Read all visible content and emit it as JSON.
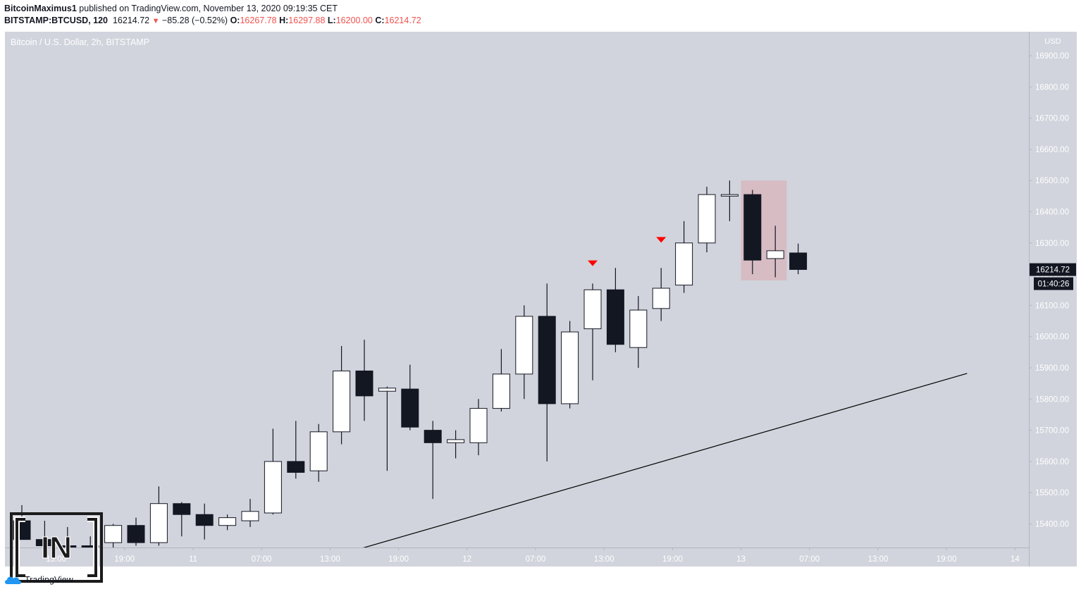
{
  "header": {
    "author": "BitcoinMaximus1",
    "published": " published on TradingView.com, November 13, 2020 09:19:35 CET",
    "symbol": "BITSTAMP:BTCUSD, 120",
    "last": "16214.72",
    "change": "−85.28 (−0.52%)",
    "o_label": "O:",
    "o_value": "16267.78",
    "h_label": "H:",
    "h_value": "16297.88",
    "l_label": "L:",
    "l_value": "16200.00",
    "c_label": "C:",
    "c_value": "16214.72"
  },
  "pane_title": "Bitcoin / U.S. Dollar, 2h, BITSTAMP",
  "footer": {
    "brand": "TradingView",
    "watermark_text": "IN"
  },
  "colors": {
    "background": "#d1d4dc",
    "bull": "#ffffff",
    "bear": "#131722",
    "marker": "#ff0000",
    "highlight": "#d8b4bc"
  },
  "chart_data": {
    "type": "candlestick",
    "title": "Bitcoin / U.S. Dollar, 2h, BITSTAMP",
    "currency": "USD",
    "ylim": [
      15300,
      16950
    ],
    "y_ticks": [
      "15400.00",
      "15500.00",
      "15600.00",
      "15700.00",
      "15800.00",
      "15900.00",
      "16000.00",
      "16100.00",
      "16200.00",
      "16300.00",
      "16400.00",
      "16500.00",
      "16600.00",
      "16700.00",
      "16800.00",
      "16900.00"
    ],
    "x_ticks": [
      "13:00",
      "19:00",
      "11",
      "07:00",
      "13:00",
      "19:00",
      "12",
      "07:00",
      "13:00",
      "19:00",
      "13",
      "07:00",
      "13:00",
      "19:00",
      "14"
    ],
    "x_tick_slots": [
      1.5,
      4.5,
      7.5,
      10.5,
      13.5,
      16.5,
      19.5,
      22.5,
      25.5,
      28.5,
      31.5,
      34.5,
      37.5,
      40.5,
      43.5
    ],
    "last_price_label": "16214.72",
    "countdown_label": "01:40:26",
    "last_price": 16214.72,
    "candles": [
      {
        "o": 15410,
        "h": 15460,
        "l": 15350,
        "c": 15350
      },
      {
        "o": 15350,
        "h": 15410,
        "l": 15330,
        "c": 15330
      },
      {
        "o": 15330,
        "h": 15390,
        "l": 15320,
        "c": 15320
      },
      {
        "o": 15330,
        "h": 15360,
        "l": 15320,
        "c": 15320
      },
      {
        "o": 15340,
        "h": 15400,
        "l": 15320,
        "c": 15395
      },
      {
        "o": 15395,
        "h": 15420,
        "l": 15330,
        "c": 15340
      },
      {
        "o": 15340,
        "h": 15520,
        "l": 15330,
        "c": 15465
      },
      {
        "o": 15465,
        "h": 15470,
        "l": 15360,
        "c": 15430
      },
      {
        "o": 15430,
        "h": 15465,
        "l": 15350,
        "c": 15395
      },
      {
        "o": 15395,
        "h": 15430,
        "l": 15380,
        "c": 15420
      },
      {
        "o": 15410,
        "h": 15480,
        "l": 15390,
        "c": 15440
      },
      {
        "o": 15435,
        "h": 15705,
        "l": 15430,
        "c": 15600
      },
      {
        "o": 15600,
        "h": 15730,
        "l": 15545,
        "c": 15565
      },
      {
        "o": 15570,
        "h": 15720,
        "l": 15535,
        "c": 15695
      },
      {
        "o": 15695,
        "h": 15970,
        "l": 15655,
        "c": 15890
      },
      {
        "o": 15890,
        "h": 15990,
        "l": 15730,
        "c": 15810
      },
      {
        "o": 15825,
        "h": 15840,
        "l": 15570,
        "c": 15835
      },
      {
        "o": 15832,
        "h": 15910,
        "l": 15700,
        "c": 15710
      },
      {
        "o": 15700,
        "h": 15730,
        "l": 15480,
        "c": 15660
      },
      {
        "o": 15660,
        "h": 15700,
        "l": 15610,
        "c": 15670
      },
      {
        "o": 15660,
        "h": 15800,
        "l": 15620,
        "c": 15770
      },
      {
        "o": 15770,
        "h": 15960,
        "l": 15760,
        "c": 15880
      },
      {
        "o": 15880,
        "h": 16100,
        "l": 15800,
        "c": 16065
      },
      {
        "o": 16065,
        "h": 16170,
        "l": 15600,
        "c": 15785
      },
      {
        "o": 15785,
        "h": 16050,
        "l": 15770,
        "c": 16015
      },
      {
        "o": 16025,
        "h": 16170,
        "l": 15860,
        "c": 16150
      },
      {
        "o": 16150,
        "h": 16220,
        "l": 15950,
        "c": 15975
      },
      {
        "o": 15965,
        "h": 16130,
        "l": 15900,
        "c": 16085
      },
      {
        "o": 16090,
        "h": 16220,
        "l": 16050,
        "c": 16155
      },
      {
        "o": 16165,
        "h": 16370,
        "l": 16140,
        "c": 16300
      },
      {
        "o": 16300,
        "h": 16480,
        "l": 16270,
        "c": 16455
      },
      {
        "o": 16450,
        "h": 16500,
        "l": 16370,
        "c": 16455
      },
      {
        "o": 16455,
        "h": 16470,
        "l": 16200,
        "c": 16245
      },
      {
        "o": 16250,
        "h": 16355,
        "l": 16190,
        "c": 16275
      },
      {
        "o": 16268,
        "h": 16298,
        "l": 16200,
        "c": 16215
      }
    ],
    "markers": [
      {
        "slot": 25,
        "price": 16235,
        "shape": "triangle-down"
      },
      {
        "slot": 28,
        "price": 16310,
        "shape": "triangle-down"
      }
    ],
    "trendline": {
      "x1": 14.8,
      "y1": 15320,
      "x2": 41.4,
      "y2": 15882
    },
    "highlight_box": {
      "x1": 31.5,
      "x2": 33.5,
      "y1": 16180,
      "y2": 16500
    }
  }
}
